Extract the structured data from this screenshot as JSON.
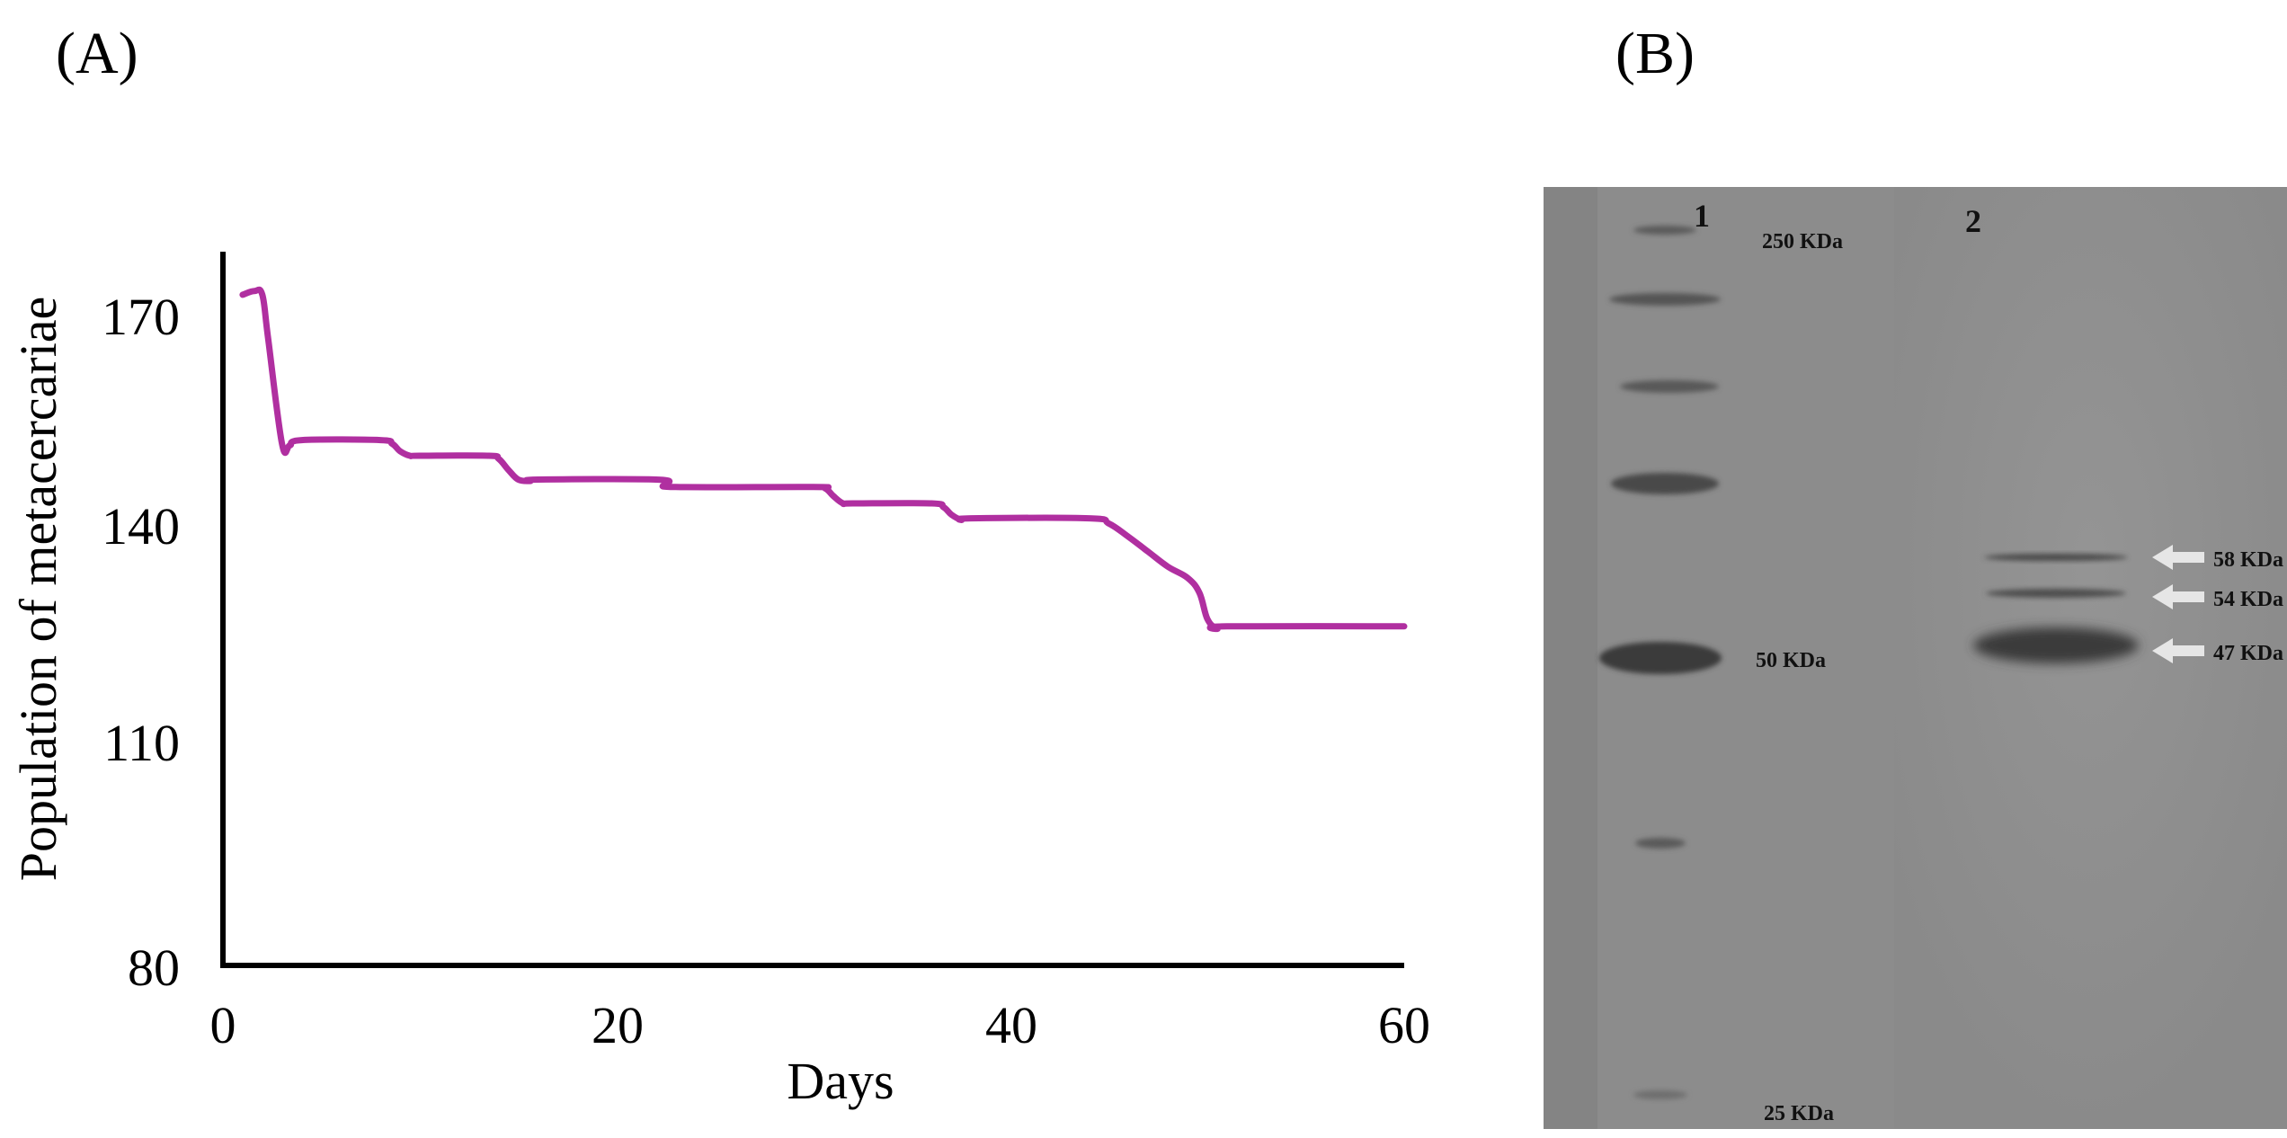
{
  "panel_a": {
    "label": "(A)"
  },
  "panel_b": {
    "label": "(B)"
  },
  "chart_data": {
    "type": "line",
    "title": "",
    "xlabel": "Days",
    "ylabel": "Population of metacercariae",
    "xlim": [
      0,
      60
    ],
    "ylim": [
      80,
      180
    ],
    "xticks": [
      0,
      20,
      40,
      60
    ],
    "yticks": [
      80,
      110,
      140,
      170
    ],
    "grid": false,
    "series": [
      {
        "name": "Population",
        "color": "#b02fa0",
        "x": [
          1,
          1.6,
          2,
          2.3,
          3,
          3.4,
          4,
          8,
          8.6,
          9,
          9.5,
          10,
          13.5,
          14,
          14.5,
          15,
          15.6,
          16,
          22,
          22.6,
          23,
          30,
          30.6,
          31,
          31.5,
          32,
          36,
          36.6,
          37,
          37.5,
          38,
          44,
          45,
          46,
          47,
          48,
          49,
          49.6,
          50,
          50.5,
          51,
          60
        ],
        "y": [
          170,
          170.5,
          170,
          164,
          150,
          149.8,
          150.5,
          150.5,
          150,
          149,
          148.4,
          148.4,
          148.4,
          148,
          146.5,
          145.2,
          145,
          145.2,
          145.2,
          144.6,
          144.2,
          144.2,
          144,
          143,
          142,
          142,
          142,
          141.5,
          140.5,
          139.8,
          140,
          140,
          139.3,
          137.5,
          135.5,
          133.5,
          132,
          130,
          126.5,
          125.2,
          125.5,
          125.5
        ]
      }
    ]
  },
  "gel": {
    "lanes": [
      "1",
      "2"
    ],
    "ladder_labels": [
      "250 KDa",
      "50 KDa",
      "25 KDa"
    ],
    "band_labels": [
      "58 KDa",
      "54 KDa",
      "47 KDa"
    ],
    "arrow_color": "#e6e6e6"
  }
}
